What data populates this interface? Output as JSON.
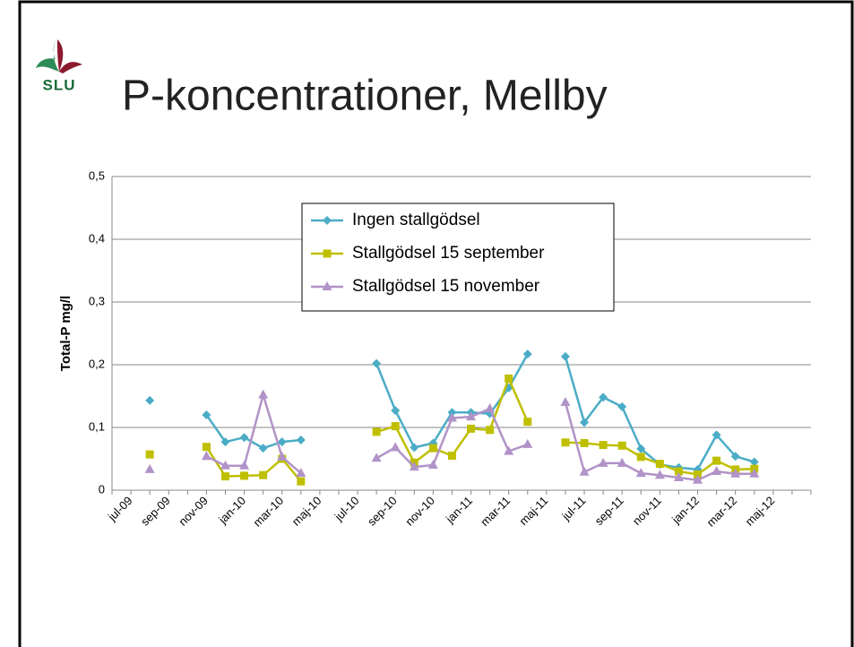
{
  "logo": "SLU",
  "chart_data": {
    "type": "line",
    "title": "P-koncentrationer, Mellby",
    "y_label": "Total-P mg/l",
    "categories": [
      null,
      "jul-09",
      null,
      "sep-09",
      null,
      "nov-09",
      null,
      "jan-10",
      null,
      "mar-10",
      null,
      "maj-10",
      null,
      "jul-10",
      null,
      "sep-10",
      null,
      "nov-10",
      null,
      "jan-11",
      null,
      "mar-11",
      null,
      "maj-11",
      null,
      "jul-11",
      null,
      "sep-11",
      null,
      "nov-11",
      null,
      "jan-12",
      null,
      "mar-12",
      null,
      "maj-12",
      null
    ],
    "ylim": [
      0,
      0.5
    ],
    "yticks": [
      0,
      {
        "value": 0.1,
        "label": "0,1"
      },
      {
        "value": 0.2,
        "label": "0,2"
      },
      {
        "value": 0.3,
        "label": "0,3"
      },
      {
        "value": 0.4,
        "label": "0,4"
      },
      {
        "value": 0.5,
        "label": "0,5"
      }
    ],
    "grid": true,
    "legend": "top",
    "series": [
      {
        "name": "Ingen stallgödsel",
        "color": "#4bacc6",
        "marker": "diamond",
        "values": [
          null,
          null,
          0.143,
          null,
          null,
          0.12,
          0.077,
          0.084,
          0.067,
          0.077,
          0.08,
          null,
          null,
          null,
          0.202,
          0.127,
          0.068,
          0.075,
          0.124,
          0.124,
          0.122,
          0.163,
          0.217,
          null,
          0.213,
          0.108,
          0.148,
          0.133,
          0.066,
          0.041,
          0.036,
          0.033,
          0.088,
          0.054,
          0.045,
          null,
          null
        ]
      },
      {
        "name": "Stallgödsel 15 september",
        "color": "#bfbf00",
        "marker": "square",
        "values": [
          null,
          null,
          0.057,
          null,
          null,
          0.069,
          0.022,
          0.023,
          0.024,
          0.05,
          0.014,
          null,
          null,
          null,
          0.093,
          0.102,
          0.044,
          0.067,
          0.055,
          0.098,
          0.096,
          0.178,
          0.109,
          null,
          0.076,
          0.075,
          0.072,
          0.071,
          0.053,
          0.042,
          0.03,
          0.025,
          0.047,
          0.033,
          0.034,
          null,
          null
        ]
      },
      {
        "name": "Stallgödsel 15 november",
        "color": "#b193c8",
        "marker": "triangle",
        "values": [
          null,
          null,
          0.033,
          null,
          null,
          0.054,
          0.039,
          0.039,
          0.152,
          0.053,
          0.027,
          null,
          null,
          null,
          0.051,
          0.068,
          0.037,
          0.04,
          0.115,
          0.117,
          0.13,
          0.062,
          0.073,
          null,
          0.14,
          0.029,
          0.043,
          0.043,
          0.027,
          0.024,
          0.02,
          0.016,
          0.03,
          0.026,
          0.026,
          null,
          null
        ]
      }
    ]
  }
}
